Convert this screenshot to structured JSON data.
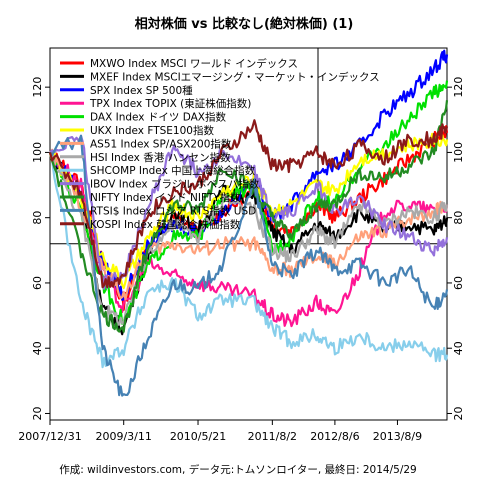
{
  "chart_data": {
    "type": "line",
    "title": "相対株価 vs 比較なし(絶対株価) (1)",
    "footer": "作成: wildinvestors.com, データ元:トムソンロイター, 最終日: 2014/5/29",
    "x_tick_labels": [
      "2007/12/31",
      "2009/3/11",
      "2010/5/21",
      "2011/8/2",
      "2012/8/6",
      "2013/8/9"
    ],
    "x_tick_values": [
      2008.0,
      2009.19,
      2010.39,
      2011.59,
      2012.6,
      2013.61
    ],
    "xlim": [
      2008.0,
      2014.41
    ],
    "y_ticks": [
      20,
      40,
      60,
      80,
      100,
      120
    ],
    "ylim": [
      18,
      132
    ],
    "series": [
      {
        "name": "MXWO Index MSCI ワールド インデックス",
        "color": "#ff0000",
        "x": [
          2008.0,
          2008.5,
          2008.85,
          2009.19,
          2009.6,
          2010.0,
          2010.39,
          2010.8,
          2011.3,
          2011.59,
          2011.9,
          2012.3,
          2012.6,
          2013.0,
          2013.4,
          2013.8,
          2014.2,
          2014.41
        ],
        "y": [
          100,
          90,
          66,
          54,
          72,
          80,
          76,
          82,
          88,
          78,
          76,
          84,
          80,
          86,
          92,
          98,
          104,
          106
        ]
      },
      {
        "name": "MXEF Index MSCIエマージング・マーケット・インデックス",
        "color": "#000000",
        "x": [
          2008.0,
          2008.5,
          2008.85,
          2009.19,
          2009.6,
          2010.0,
          2010.39,
          2010.8,
          2011.3,
          2011.59,
          2011.9,
          2012.3,
          2012.6,
          2013.0,
          2013.4,
          2013.8,
          2014.2,
          2014.41
        ],
        "y": [
          100,
          86,
          52,
          46,
          70,
          82,
          76,
          88,
          86,
          76,
          70,
          78,
          74,
          82,
          76,
          78,
          76,
          80
        ]
      },
      {
        "name": "SPX Index SP 500種",
        "color": "#0000ff",
        "x": [
          2008.0,
          2008.5,
          2008.85,
          2009.19,
          2009.6,
          2010.0,
          2010.39,
          2010.8,
          2011.3,
          2011.59,
          2011.9,
          2012.3,
          2012.6,
          2013.0,
          2013.4,
          2013.8,
          2014.2,
          2014.41
        ],
        "y": [
          100,
          88,
          66,
          56,
          72,
          78,
          76,
          82,
          92,
          80,
          84,
          94,
          96,
          102,
          112,
          118,
          126,
          130
        ]
      },
      {
        "name": "TPX Index TOPIX (東証株価指数)",
        "color": "#ff1493",
        "x": [
          2008.0,
          2008.5,
          2008.85,
          2009.19,
          2009.6,
          2010.0,
          2010.39,
          2010.8,
          2011.3,
          2011.59,
          2011.9,
          2012.3,
          2012.6,
          2013.0,
          2013.4,
          2013.8,
          2014.2,
          2014.41
        ],
        "y": [
          100,
          90,
          62,
          52,
          66,
          62,
          60,
          58,
          56,
          50,
          48,
          54,
          50,
          64,
          82,
          84,
          82,
          84
        ]
      },
      {
        "name": "DAX Index ドイツ DAX指数",
        "color": "#00e000",
        "x": [
          2008.0,
          2008.5,
          2008.85,
          2009.19,
          2009.6,
          2010.0,
          2010.39,
          2010.8,
          2011.3,
          2011.59,
          2011.9,
          2012.3,
          2012.6,
          2013.0,
          2013.4,
          2013.8,
          2014.2,
          2014.41
        ],
        "y": [
          100,
          82,
          60,
          48,
          66,
          74,
          74,
          86,
          90,
          70,
          74,
          86,
          84,
          96,
          102,
          110,
          118,
          122
        ]
      },
      {
        "name": "UKX Index FTSE100指数",
        "color": "#ffff00",
        "x": [
          2008.0,
          2008.5,
          2008.85,
          2009.19,
          2009.6,
          2010.0,
          2010.39,
          2010.8,
          2011.3,
          2011.59,
          2011.9,
          2012.3,
          2012.6,
          2013.0,
          2013.4,
          2013.8,
          2014.2,
          2014.41
        ],
        "y": [
          100,
          86,
          68,
          60,
          74,
          84,
          80,
          88,
          92,
          82,
          84,
          90,
          88,
          98,
          100,
          102,
          104,
          104
        ]
      },
      {
        "name": "AS51 Index SP/ASX200指数",
        "color": "#ffa07a",
        "x": [
          2008.0,
          2008.5,
          2008.85,
          2009.19,
          2009.6,
          2010.0,
          2010.39,
          2010.8,
          2011.3,
          2011.59,
          2011.9,
          2012.3,
          2012.6,
          2013.0,
          2013.4,
          2013.8,
          2014.2,
          2014.41
        ],
        "y": [
          100,
          84,
          64,
          56,
          70,
          72,
          70,
          72,
          72,
          64,
          64,
          68,
          66,
          74,
          76,
          80,
          82,
          84
        ]
      },
      {
        "name": "HSI Index 香港 ハンセン指数",
        "color": "#a9a9a9",
        "x": [
          2008.0,
          2008.5,
          2008.85,
          2009.19,
          2009.6,
          2010.0,
          2010.39,
          2010.8,
          2011.3,
          2011.59,
          2011.9,
          2012.3,
          2012.6,
          2013.0,
          2013.4,
          2013.8,
          2014.2,
          2014.41
        ],
        "y": [
          100,
          80,
          52,
          48,
          70,
          78,
          74,
          86,
          82,
          70,
          68,
          76,
          72,
          84,
          78,
          82,
          80,
          84
        ]
      },
      {
        "name": "SHCOMP Index 中国上海総合指数",
        "color": "#87ceeb",
        "x": [
          2008.0,
          2008.5,
          2008.85,
          2009.19,
          2009.6,
          2010.0,
          2010.39,
          2010.8,
          2011.3,
          2011.59,
          2011.9,
          2012.3,
          2012.6,
          2013.0,
          2013.4,
          2013.8,
          2014.2,
          2014.41
        ],
        "y": [
          100,
          54,
          36,
          40,
          58,
          60,
          50,
          55,
          54,
          46,
          42,
          44,
          40,
          44,
          40,
          42,
          38,
          38
        ]
      },
      {
        "name": "IBOV Index ブラジル ボベスパ指数",
        "color": "#9370db",
        "x": [
          2008.0,
          2008.5,
          2008.85,
          2009.19,
          2009.6,
          2010.0,
          2010.39,
          2010.8,
          2011.3,
          2011.59,
          2011.9,
          2012.3,
          2012.6,
          2013.0,
          2013.4,
          2013.8,
          2014.2,
          2014.41
        ],
        "y": [
          100,
          106,
          60,
          62,
          84,
          102,
          94,
          100,
          94,
          80,
          82,
          90,
          82,
          86,
          78,
          74,
          70,
          74
        ]
      },
      {
        "name": "NIFTY Index インド NIFTY指数",
        "color": "#228b22",
        "x": [
          2008.0,
          2008.5,
          2008.85,
          2009.19,
          2009.6,
          2010.0,
          2010.39,
          2010.8,
          2011.3,
          2011.59,
          2011.9,
          2012.3,
          2012.6,
          2013.0,
          2013.4,
          2013.8,
          2014.2,
          2014.41
        ],
        "y": [
          100,
          70,
          50,
          46,
          72,
          84,
          82,
          96,
          88,
          80,
          74,
          84,
          84,
          94,
          92,
          96,
          100,
          116
        ]
      },
      {
        "name": "RTSI$ Index ロシア RTS指数 USD",
        "color": "#4682b4",
        "x": [
          2008.0,
          2008.5,
          2008.85,
          2009.19,
          2009.6,
          2010.0,
          2010.39,
          2010.8,
          2011.3,
          2011.59,
          2011.9,
          2012.3,
          2012.6,
          2013.0,
          2013.4,
          2013.8,
          2014.2,
          2014.41
        ],
        "y": [
          100,
          104,
          40,
          24,
          44,
          60,
          58,
          66,
          90,
          66,
          62,
          70,
          64,
          66,
          60,
          64,
          52,
          58
        ]
      },
      {
        "name": "KOSPI Index 韓国総合株価指数",
        "color": "#8b1a1a",
        "x": [
          2008.0,
          2008.5,
          2008.85,
          2009.19,
          2009.6,
          2010.0,
          2010.39,
          2010.8,
          2011.3,
          2011.59,
          2011.9,
          2012.3,
          2012.6,
          2013.0,
          2013.4,
          2013.8,
          2014.2,
          2014.41
        ],
        "y": [
          100,
          88,
          60,
          62,
          82,
          88,
          90,
          100,
          108,
          96,
          96,
          100,
          96,
          102,
          98,
          104,
          104,
          108
        ]
      }
    ]
  }
}
